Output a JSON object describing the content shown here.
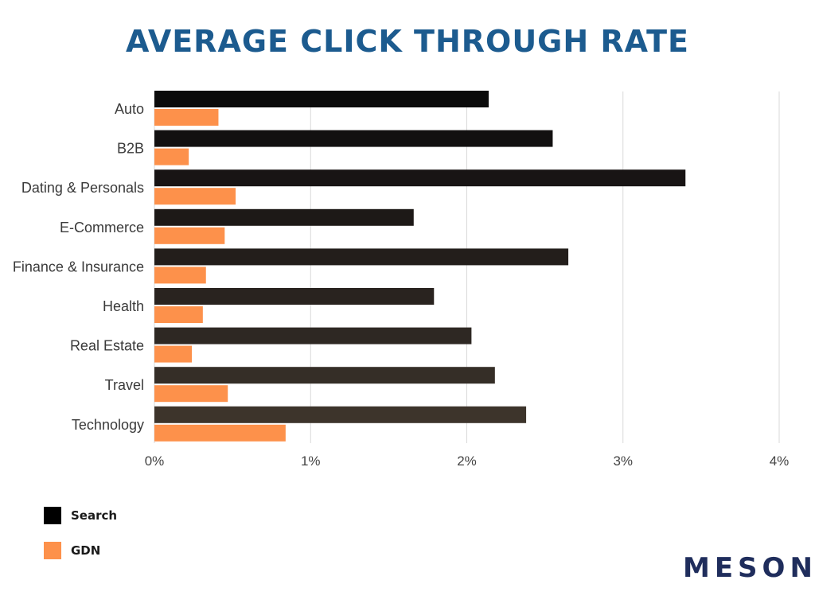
{
  "chart_data": {
    "type": "bar",
    "orientation": "horizontal",
    "title": "AVERAGE CLICK THROUGH RATE",
    "categories": [
      "Auto",
      "B2B",
      "Dating & Personals",
      "E-Commerce",
      "Finance & Insurance",
      "Health",
      "Real Estate",
      "Travel",
      "Technology"
    ],
    "series": [
      {
        "name": "Search",
        "values": [
          2.14,
          2.55,
          3.4,
          1.66,
          2.65,
          1.79,
          2.03,
          2.18,
          2.38
        ],
        "colors": [
          "#0b0b0b",
          "#121010",
          "#181414",
          "#1d1917",
          "#231e1b",
          "#29231f",
          "#2e2823",
          "#352e27",
          "#3d342b"
        ]
      },
      {
        "name": "GDN",
        "values": [
          0.41,
          0.22,
          0.52,
          0.45,
          0.33,
          0.31,
          0.24,
          0.47,
          0.84
        ],
        "color": "#fd914b"
      }
    ],
    "xlim": [
      0,
      4
    ],
    "xticks": [
      "0%",
      "1%",
      "2%",
      "3%",
      "4%"
    ],
    "grid": true,
    "legend_position": "bottom-left"
  },
  "legend": {
    "search_label": "Search",
    "search_color": "#000000",
    "gdn_label": "GDN",
    "gdn_color": "#fd914b"
  },
  "logo": {
    "text": "MESON"
  }
}
